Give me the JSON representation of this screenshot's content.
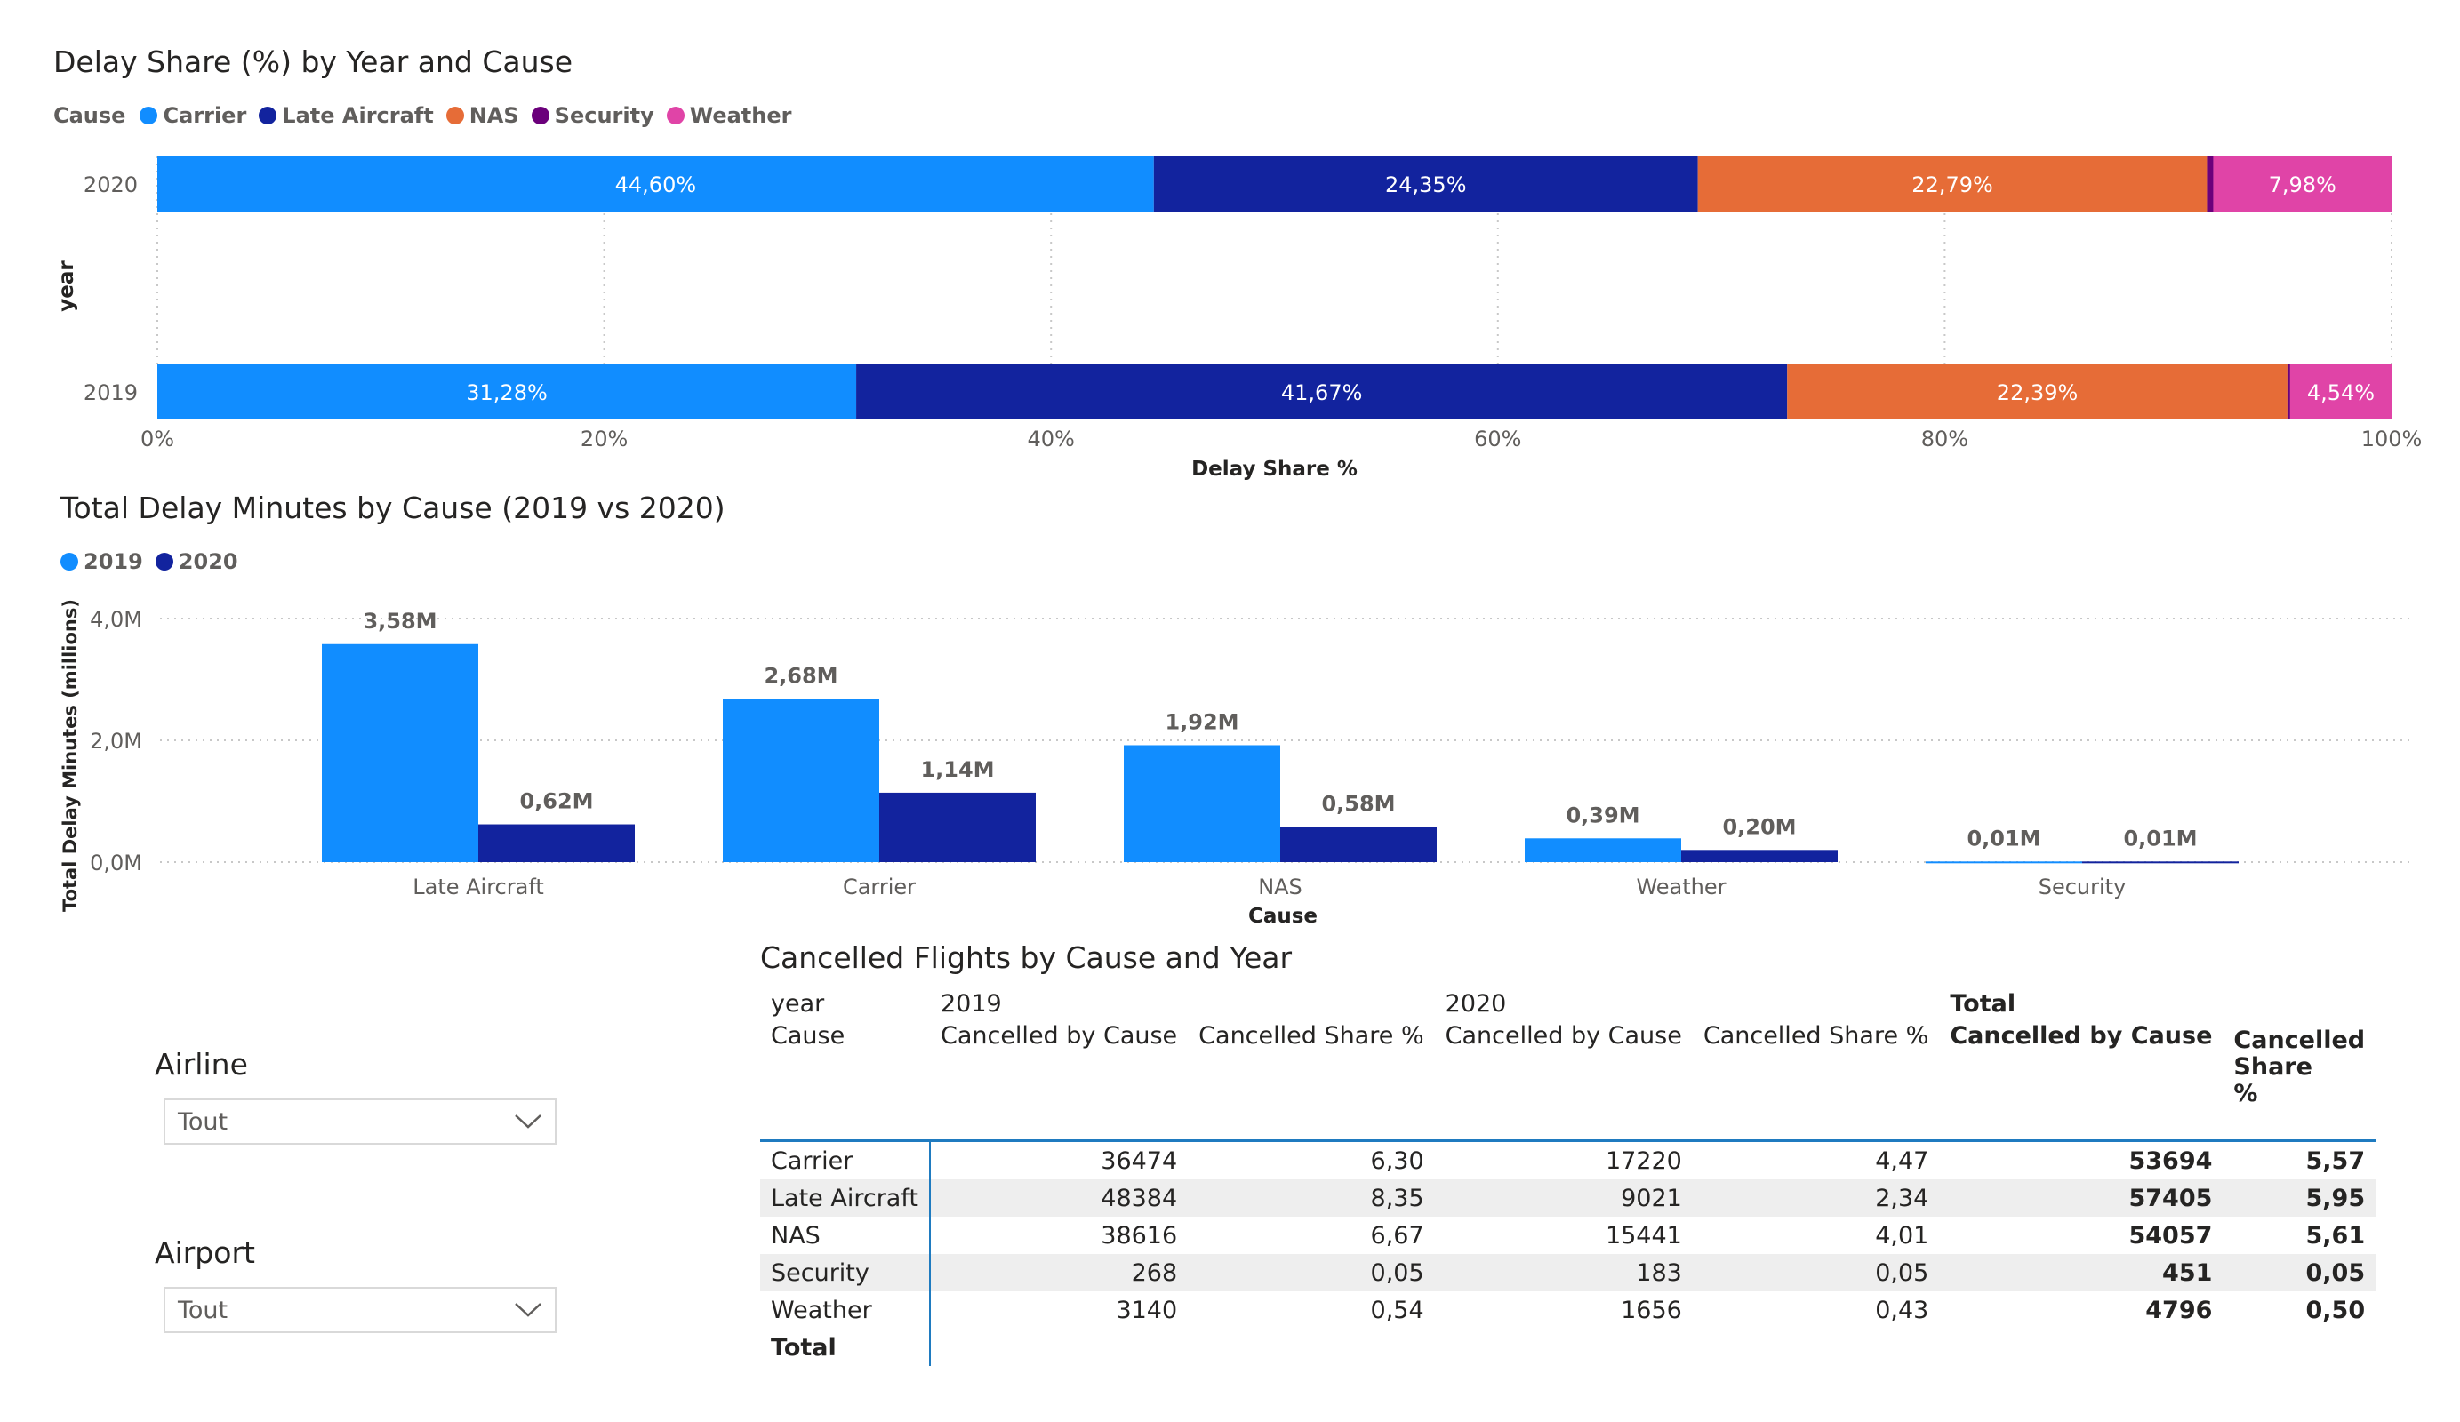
{
  "share_chart": {
    "title": "Delay Share (%) by Year and Cause",
    "legend_title": "Cause",
    "legend": [
      {
        "name": "Carrier",
        "color": "#118dff"
      },
      {
        "name": "Late Aircraft",
        "color": "#12239e"
      },
      {
        "name": "NAS",
        "color": "#e66c37"
      },
      {
        "name": "Security",
        "color": "#6b007b"
      },
      {
        "name": "Weather",
        "color": "#e044a7"
      }
    ],
    "y_label": "year",
    "x_label": "Delay Share %",
    "x_ticks": [
      "0%",
      "20%",
      "40%",
      "60%",
      "80%",
      "100%"
    ]
  },
  "minutes_chart": {
    "title": "Total Delay Minutes by Cause (2019 vs 2020)",
    "legend": [
      {
        "name": "2019",
        "color": "#118dff"
      },
      {
        "name": "2020",
        "color": "#12239e"
      }
    ],
    "y_label": "Total Delay Minutes (millions)",
    "x_label": "Cause",
    "y_ticks": [
      "0,0M",
      "2,0M",
      "4,0M"
    ]
  },
  "chart_data": [
    {
      "type": "bar",
      "orientation": "horizontal-stacked-100",
      "title": "Delay Share (%) by Year and Cause",
      "xlabel": "Delay Share %",
      "ylabel": "year",
      "xlim": [
        0,
        100
      ],
      "grid": true,
      "legend_position": "top-left",
      "categories": [
        "2020",
        "2019"
      ],
      "series": [
        {
          "name": "Carrier",
          "values": [
            44.6,
            31.28
          ],
          "labels": [
            "44,60%",
            "31,28%"
          ]
        },
        {
          "name": "Late Aircraft",
          "values": [
            24.35,
            41.67
          ],
          "labels": [
            "24,35%",
            "41,67%"
          ]
        },
        {
          "name": "NAS",
          "values": [
            22.79,
            22.39
          ],
          "labels": [
            "22,79%",
            "22,39%"
          ]
        },
        {
          "name": "Security",
          "values": [
            0.28,
            0.12
          ],
          "labels": [
            "",
            ""
          ]
        },
        {
          "name": "Weather",
          "values": [
            7.98,
            4.54
          ],
          "labels": [
            "7,98%",
            "4,54%"
          ]
        }
      ]
    },
    {
      "type": "bar",
      "orientation": "vertical-clustered",
      "title": "Total Delay Minutes by Cause (2019 vs 2020)",
      "xlabel": "Cause",
      "ylabel": "Total Delay Minutes (millions)",
      "ylim": [
        0,
        4
      ],
      "grid": true,
      "legend_position": "top-left",
      "categories": [
        "Late Aircraft",
        "Carrier",
        "NAS",
        "Weather",
        "Security"
      ],
      "series": [
        {
          "name": "2019",
          "values": [
            3.58,
            2.68,
            1.92,
            0.39,
            0.01
          ],
          "labels": [
            "3,58M",
            "2,68M",
            "1,92M",
            "0,39M",
            "0,01M"
          ]
        },
        {
          "name": "2020",
          "values": [
            0.62,
            1.14,
            0.58,
            0.2,
            0.01
          ],
          "labels": [
            "0,62M",
            "1,14M",
            "0,58M",
            "0,20M",
            "0,01M"
          ]
        }
      ]
    },
    {
      "type": "table",
      "title": "Cancelled Flights by Cause and Year"
    }
  ],
  "slicers": {
    "airline": {
      "title": "Airline",
      "value": "Tout"
    },
    "airport": {
      "title": "Airport",
      "value": "Tout"
    }
  },
  "table": {
    "title": "Cancelled Flights by Cause and Year",
    "header_year_label": "year",
    "header_cause_label": "Cause",
    "years": [
      "2019",
      "2020"
    ],
    "total_label": "Total",
    "col_cancelled": "Cancelled by Cause",
    "col_share": "Cancelled Share %",
    "col_share_line1": "Cancelled Share",
    "col_share_line2": "%",
    "rows": [
      {
        "cause": "Carrier",
        "c2019": "36474",
        "s2019": "6,30",
        "c2020": "17220",
        "s2020": "4,47",
        "ct": "53694",
        "st": "5,57"
      },
      {
        "cause": "Late Aircraft",
        "c2019": "48384",
        "s2019": "8,35",
        "c2020": "9021",
        "s2020": "2,34",
        "ct": "57405",
        "st": "5,95"
      },
      {
        "cause": "NAS",
        "c2019": "38616",
        "s2019": "6,67",
        "c2020": "15441",
        "s2020": "4,01",
        "ct": "54057",
        "st": "5,61"
      },
      {
        "cause": "Security",
        "c2019": "268",
        "s2019": "0,05",
        "c2020": "183",
        "s2020": "0,05",
        "ct": "451",
        "st": "0,05"
      },
      {
        "cause": "Weather",
        "c2019": "3140",
        "s2019": "0,54",
        "c2020": "1656",
        "s2020": "0,43",
        "ct": "4796",
        "st": "0,50"
      }
    ],
    "footer_label": "Total"
  }
}
